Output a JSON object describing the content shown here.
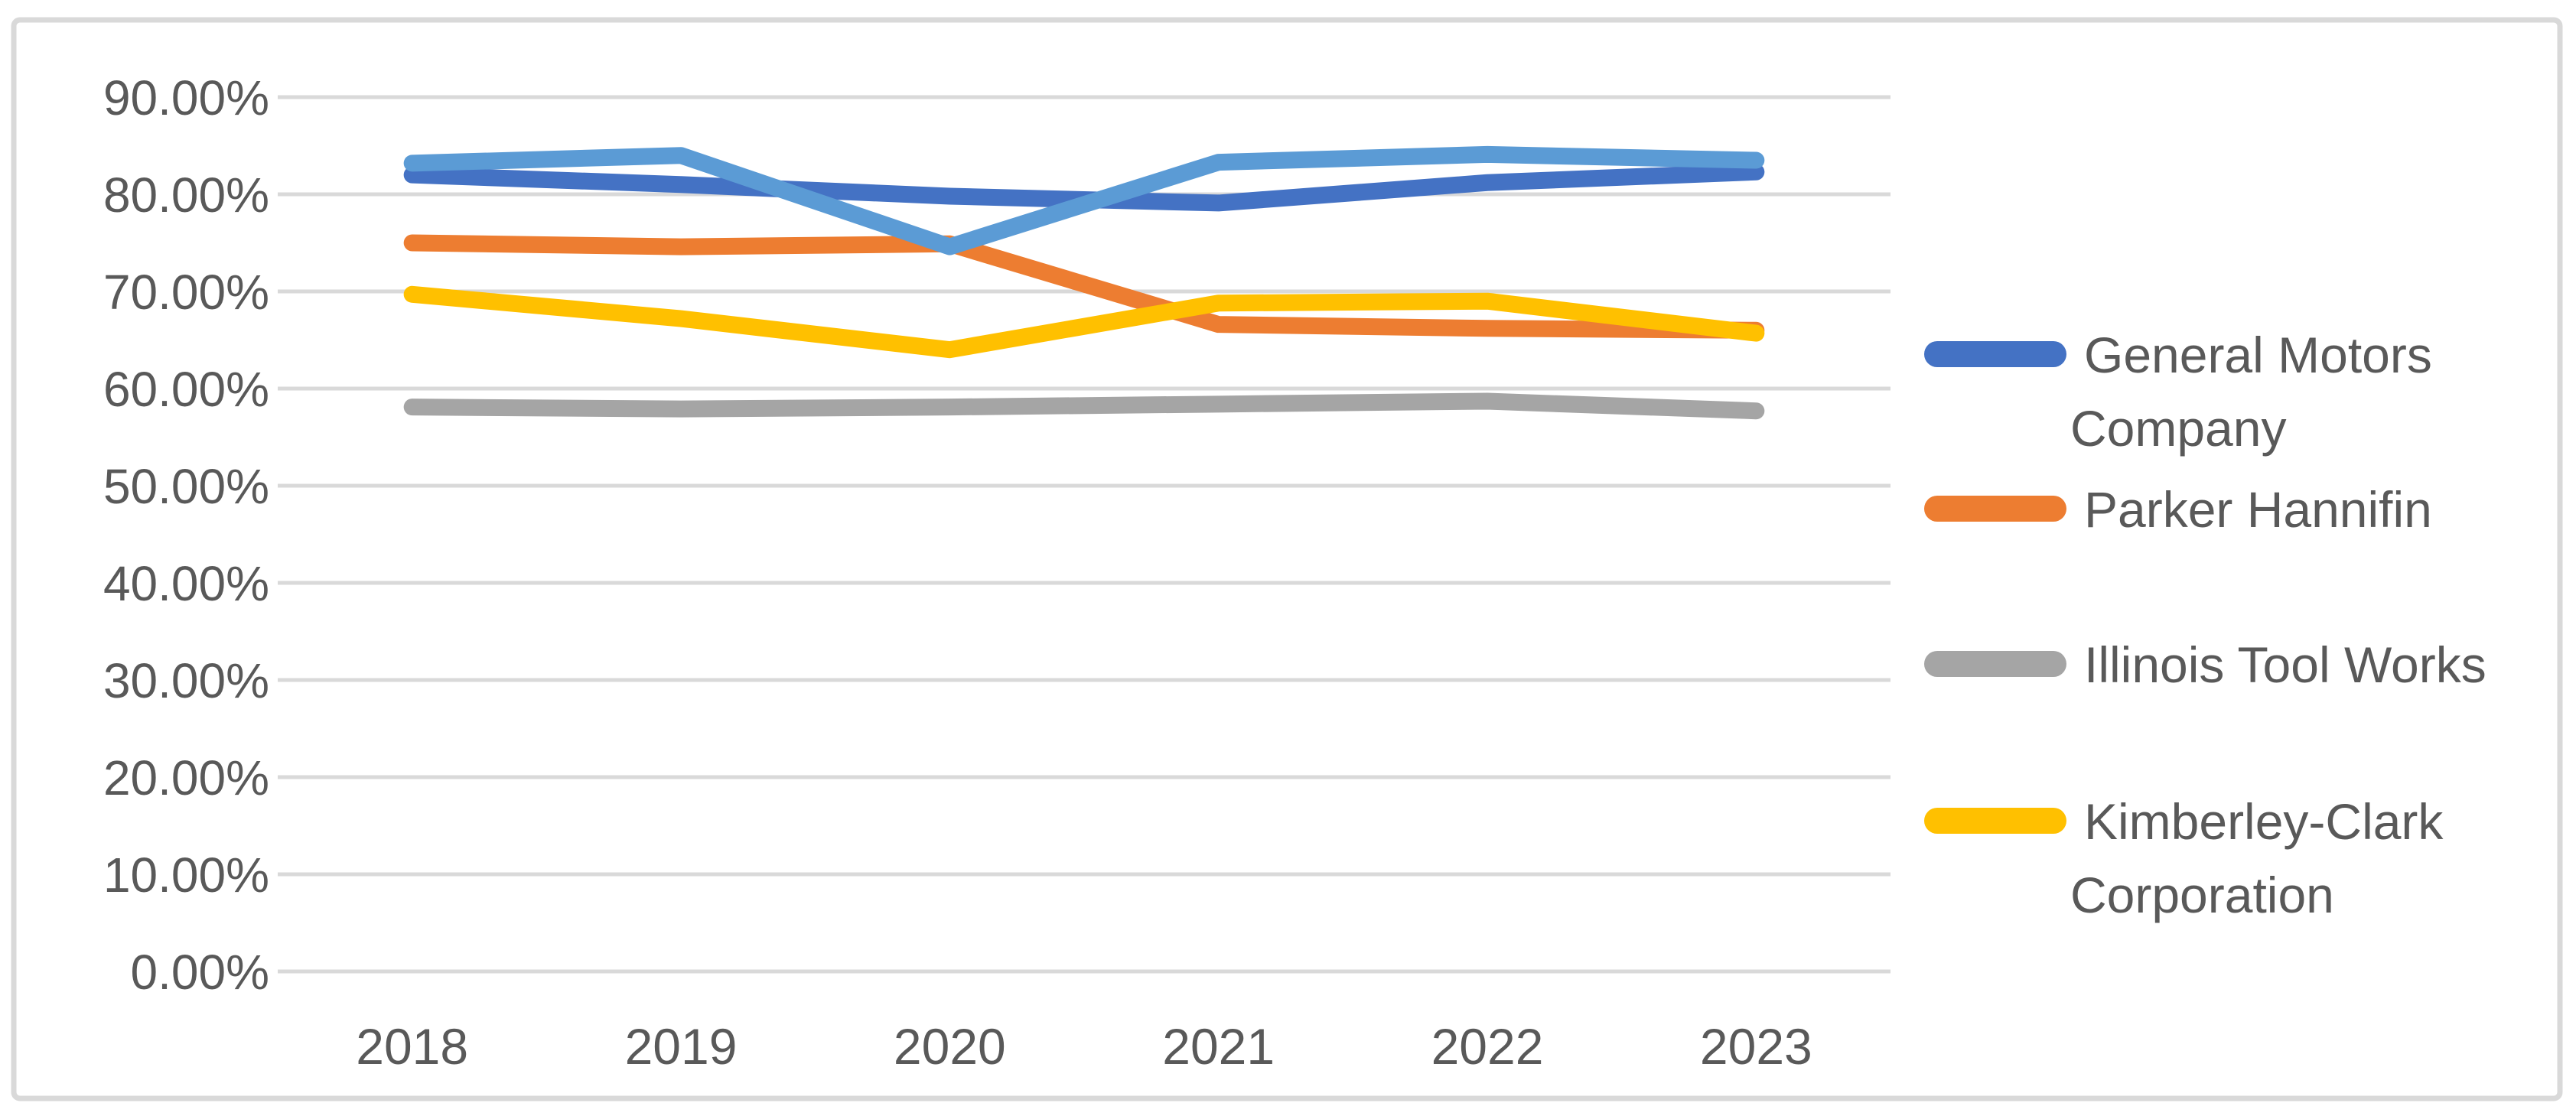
{
  "chart_data": {
    "type": "line",
    "title": "",
    "xlabel": "",
    "ylabel": "",
    "categories": [
      "2018",
      "2019",
      "2020",
      "2021",
      "2022",
      "2023"
    ],
    "series": [
      {
        "name": "General Motors Company",
        "label_lines": [
          "General Motors",
          "Company"
        ],
        "color": "#4472C4",
        "in_legend": true,
        "values": [
          82.0,
          81.0,
          79.8,
          79.1,
          81.2,
          82.3
        ]
      },
      {
        "name": "Parker Hannifin",
        "label_lines": [
          "Parker Hannifin"
        ],
        "color": "#ED7D31",
        "in_legend": true,
        "values": [
          75.0,
          74.6,
          74.9,
          66.6,
          66.2,
          66.0
        ]
      },
      {
        "name": "Illinois Tool Works",
        "label_lines": [
          "Illinois Tool Works"
        ],
        "color": "#A5A5A5",
        "in_legend": true,
        "values": [
          58.1,
          57.9,
          58.1,
          58.4,
          58.7,
          57.7
        ]
      },
      {
        "name": "Kimberley-Clark Corporation",
        "label_lines": [
          "Kimberley-Clark",
          "Corporation"
        ],
        "color": "#FFC000",
        "in_legend": true,
        "values": [
          69.7,
          67.2,
          64.0,
          68.8,
          69.0,
          65.7
        ]
      },
      {
        "name": "",
        "label_lines": [],
        "color": "#5B9BD5",
        "in_legend": false,
        "values": [
          83.2,
          84.0,
          74.6,
          83.3,
          84.1,
          83.5
        ]
      }
    ],
    "ylim": [
      0,
      90
    ],
    "y_tick_step": 10,
    "y_tick_labels": [
      "0.00%",
      "10.00%",
      "20.00%",
      "30.00%",
      "40.00%",
      "50.00%",
      "60.00%",
      "70.00%",
      "80.00%",
      "90.00%"
    ],
    "grid": true,
    "legend_position": "right"
  },
  "colors": {
    "background": "#FFFFFF",
    "frame_border": "#D9D9D9",
    "gridline": "#D9D9D9",
    "axis_text": "#595959"
  }
}
